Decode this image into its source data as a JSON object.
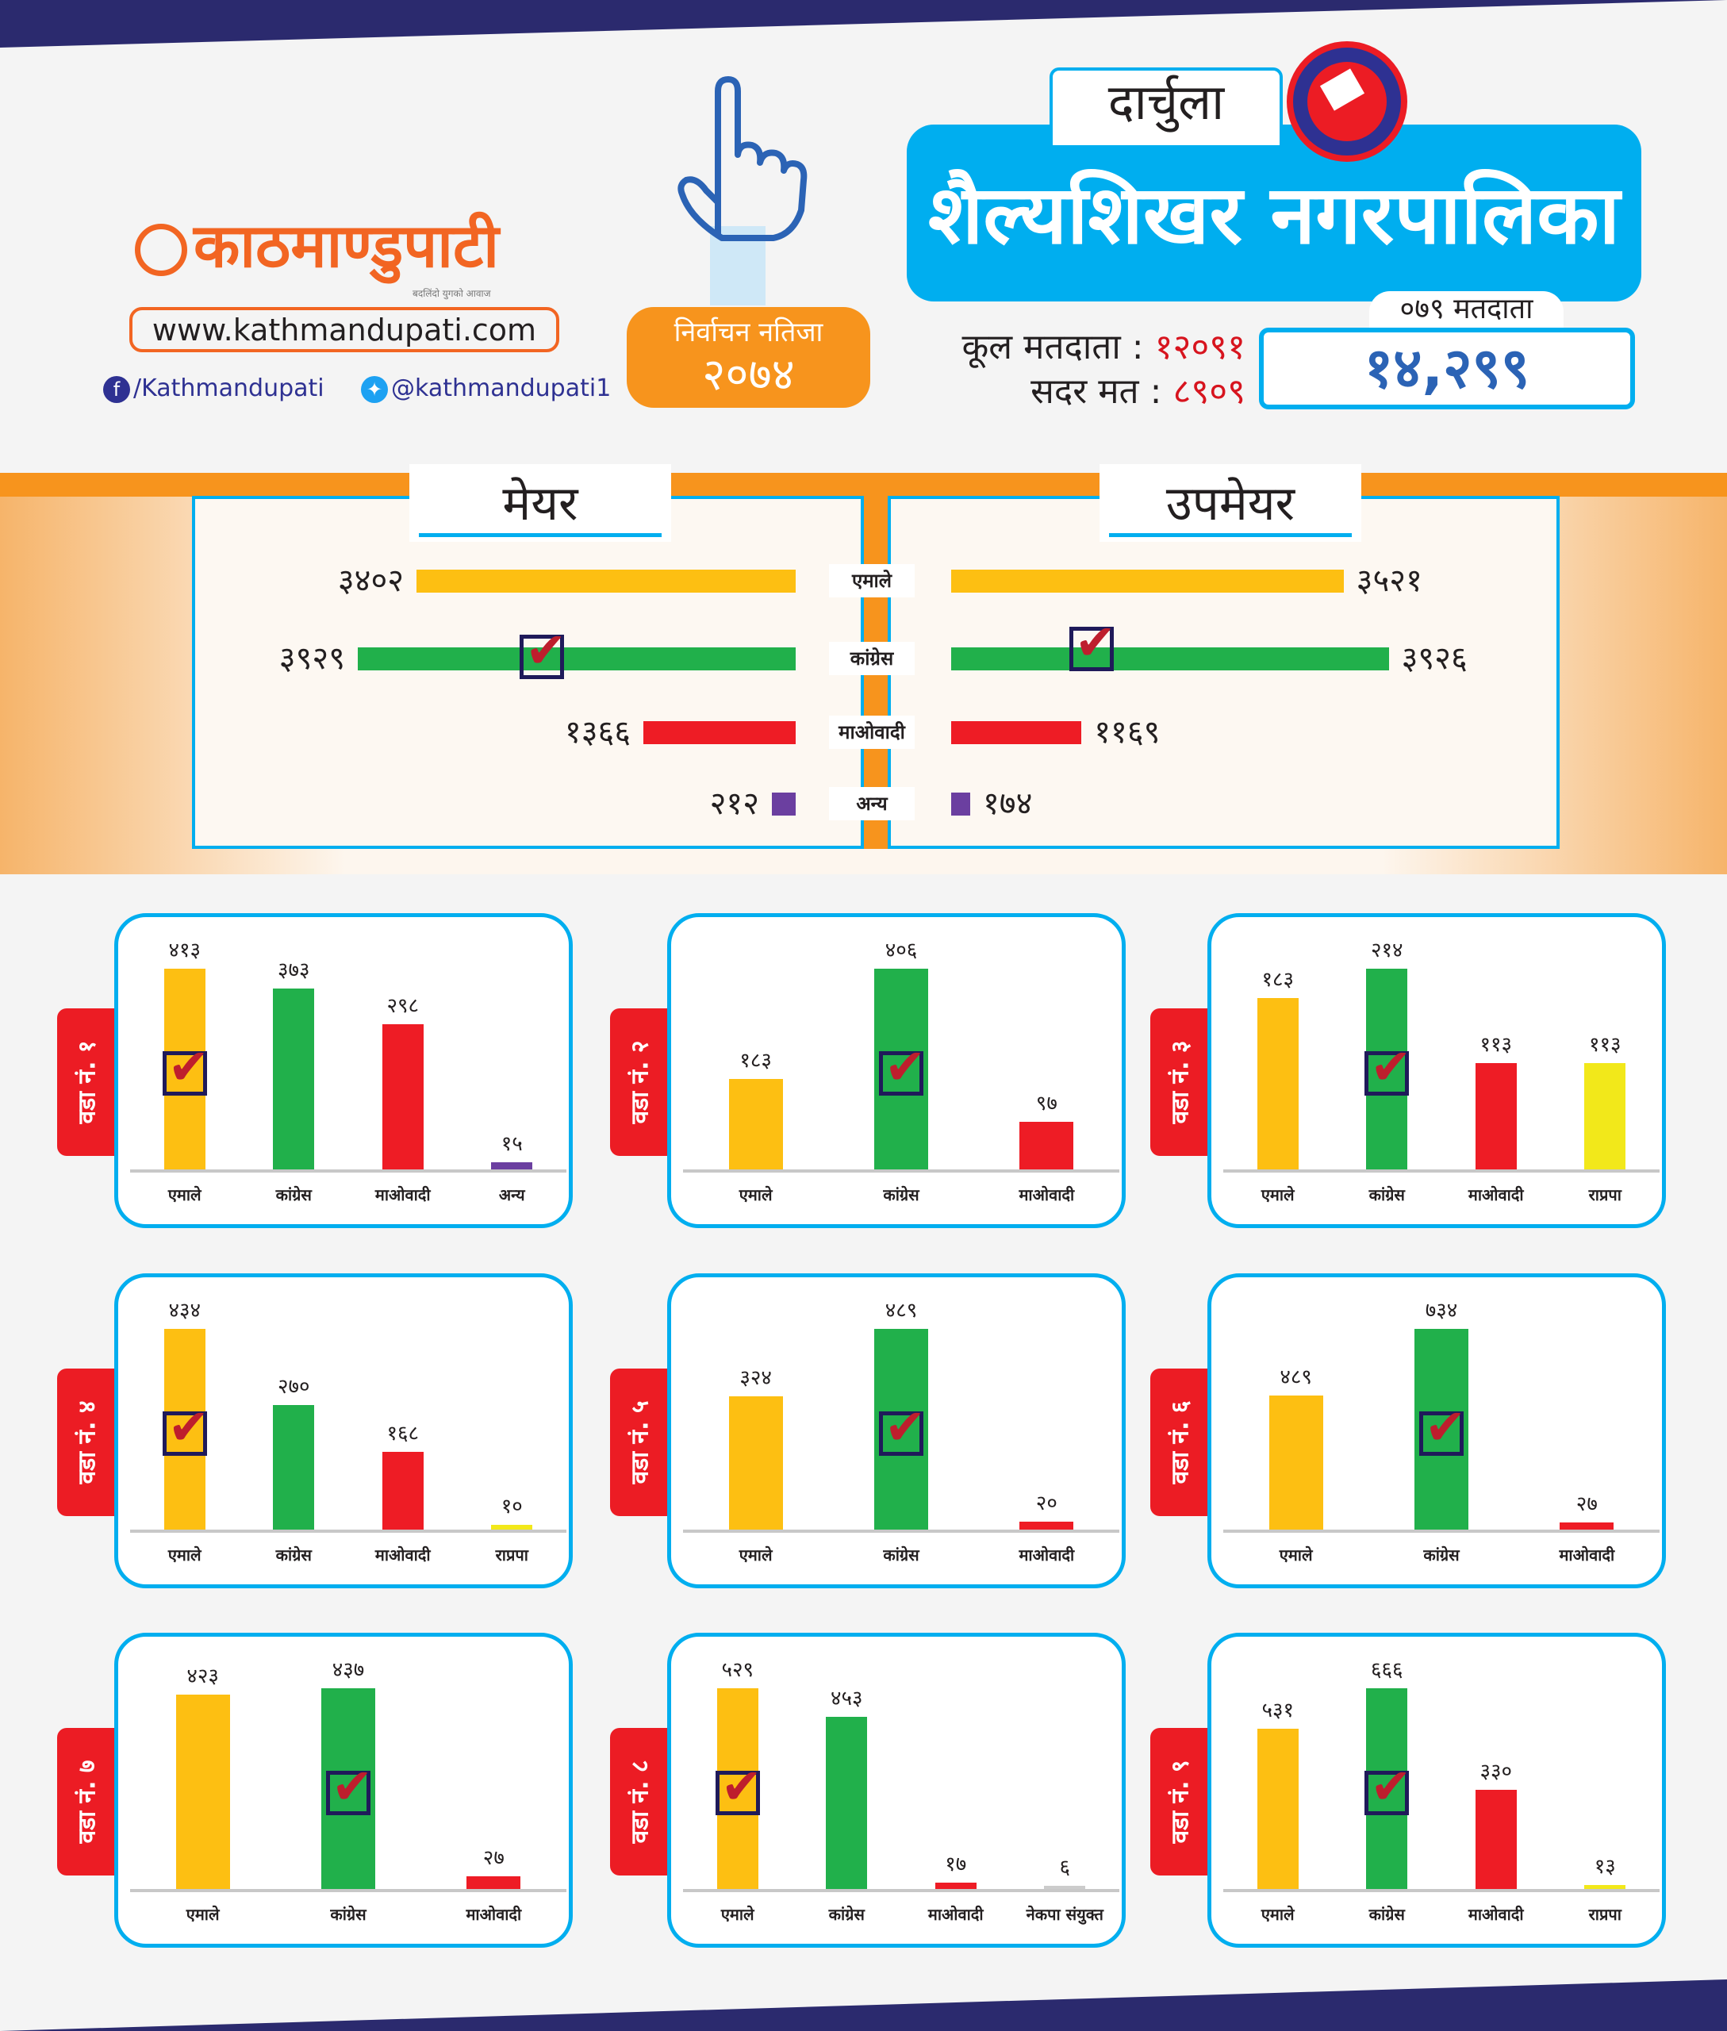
{
  "brand": {
    "name": "काठमाण्डुपाटी",
    "tagline": "बदलिंदो युगको आवाज",
    "url": "www.kathmandupati.com",
    "facebook": "/Kathmandupati",
    "twitter": "@kathmandupati1"
  },
  "result_badge": {
    "line1": "निर्वाचन नतिजा",
    "line2": "२०७४"
  },
  "location": {
    "district": "दार्चुला",
    "municipality": "शैल्यशिखर नगरपालिका"
  },
  "voters": {
    "total_label": "कूल मतदाता",
    "total": "१२०९१",
    "valid_label": "सदर मत",
    "valid": "८९०९",
    "sep": ":"
  },
  "voters_079": {
    "label": "०७९ मतदाता",
    "value": "१४,२९९"
  },
  "colors": {
    "uml": "#FDBF12",
    "congress": "#21B04B",
    "maoist": "#EE1C25",
    "other": "#6B3FA0",
    "rpp": "#F2E81A",
    "ncp_united": "#CCCCCC",
    "accent": "#00AEEF"
  },
  "chart_data": [
    {
      "type": "bar",
      "title": "मेयर / उपमेयर",
      "categories": [
        "एमाले",
        "कांग्रेस",
        "माओवादी",
        "अन्य"
      ],
      "series": [
        {
          "name": "मेयर",
          "values": [
            3402,
            3929,
            1366,
            212
          ],
          "labels": [
            "३४०२",
            "३९२९",
            "१३६६",
            "२१२"
          ],
          "winner": 1
        },
        {
          "name": "उपमेयर",
          "values": [
            3521,
            3926,
            1169,
            174
          ],
          "labels": [
            "३५२१",
            "३९२६",
            "११६९",
            "१७४"
          ],
          "winner": 1
        }
      ],
      "colors": [
        "#FDBF12",
        "#21B04B",
        "#EE1C25",
        "#6B3FA0"
      ]
    },
    {
      "type": "bar",
      "title": "वडा नं. १",
      "categories": [
        "एमाले",
        "कांग्रेस",
        "माओवादी",
        "अन्य"
      ],
      "values": [
        413,
        373,
        298,
        15
      ],
      "labels": [
        "४१३",
        "३७३",
        "२९८",
        "१५"
      ],
      "colors": [
        "#FDBF12",
        "#21B04B",
        "#EE1C25",
        "#6B3FA0"
      ],
      "winner": 0
    },
    {
      "type": "bar",
      "title": "वडा नं. २",
      "categories": [
        "एमाले",
        "कांग्रेस",
        "माओवादी"
      ],
      "values": [
        183,
        406,
        97
      ],
      "labels": [
        "१८३",
        "४०६",
        "९७"
      ],
      "colors": [
        "#FDBF12",
        "#21B04B",
        "#EE1C25"
      ],
      "winner": 1
    },
    {
      "type": "bar",
      "title": "वडा नं. ३",
      "categories": [
        "एमाले",
        "कांग्रेस",
        "माओवादी",
        "राप्रपा"
      ],
      "values": [
        183,
        214,
        113,
        113
      ],
      "labels": [
        "१८३",
        "२१४",
        "११३",
        "११३"
      ],
      "colors": [
        "#FDBF12",
        "#21B04B",
        "#EE1C25",
        "#F2E81A"
      ],
      "winner": 1
    },
    {
      "type": "bar",
      "title": "वडा नं. ४",
      "categories": [
        "एमाले",
        "कांग्रेस",
        "माओवादी",
        "राप्रपा"
      ],
      "values": [
        434,
        270,
        168,
        10
      ],
      "labels": [
        "४३४",
        "२७०",
        "१६८",
        "१०"
      ],
      "colors": [
        "#FDBF12",
        "#21B04B",
        "#EE1C25",
        "#F2E81A"
      ],
      "winner": 0
    },
    {
      "type": "bar",
      "title": "वडा नं. ५",
      "categories": [
        "एमाले",
        "कांग्रेस",
        "माओवादी"
      ],
      "values": [
        324,
        489,
        20
      ],
      "labels": [
        "३२४",
        "४८९",
        "२०"
      ],
      "colors": [
        "#FDBF12",
        "#21B04B",
        "#EE1C25"
      ],
      "winner": 1
    },
    {
      "type": "bar",
      "title": "वडा नं. ६",
      "categories": [
        "एमाले",
        "कांग्रेस",
        "माओवादी"
      ],
      "values": [
        489,
        734,
        27
      ],
      "labels": [
        "४८९",
        "७३४",
        "२७"
      ],
      "colors": [
        "#FDBF12",
        "#21B04B",
        "#EE1C25"
      ],
      "winner": 1
    },
    {
      "type": "bar",
      "title": "वडा नं. ७",
      "categories": [
        "एमाले",
        "कांग्रेस",
        "माओवादी"
      ],
      "values": [
        423,
        437,
        27
      ],
      "labels": [
        "४२३",
        "४३७",
        "२७"
      ],
      "colors": [
        "#FDBF12",
        "#21B04B",
        "#EE1C25"
      ],
      "winner": 1
    },
    {
      "type": "bar",
      "title": "वडा नं. ८",
      "categories": [
        "एमाले",
        "कांग्रेस",
        "माओवादी",
        "नेकपा संयुक्त"
      ],
      "values": [
        529,
        453,
        17,
        6
      ],
      "labels": [
        "५२९",
        "४५३",
        "१७",
        "६"
      ],
      "colors": [
        "#FDBF12",
        "#21B04B",
        "#EE1C25",
        "#CCCCCC"
      ],
      "winner": 0
    },
    {
      "type": "bar",
      "title": "वडा नं. ९",
      "categories": [
        "एमाले",
        "कांग्रेस",
        "माओवादी",
        "राप्रपा"
      ],
      "values": [
        531,
        666,
        330,
        13
      ],
      "labels": [
        "५३१",
        "६६६",
        "३३०",
        "१३"
      ],
      "colors": [
        "#FDBF12",
        "#21B04B",
        "#EE1C25",
        "#F2E81A"
      ],
      "winner": 1
    }
  ]
}
